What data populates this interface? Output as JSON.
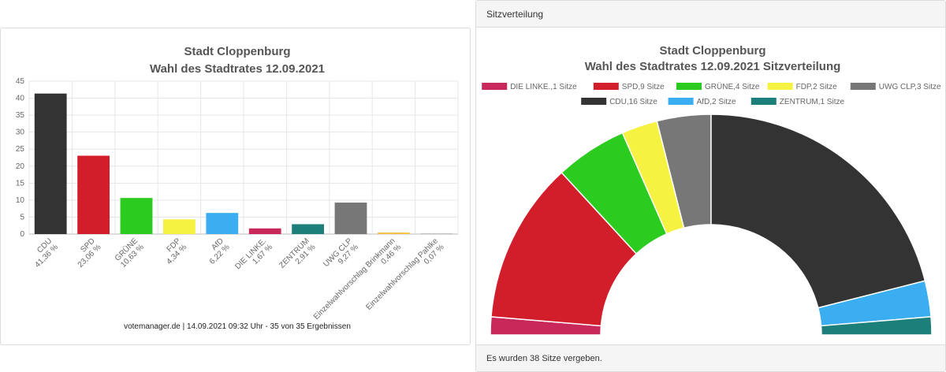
{
  "bar_chart": {
    "title_line1": "Stadt Cloppenburg",
    "title_line2": "Wahl des Stadtrates 12.09.2021",
    "footnote": "votemanager.de | 14.09.2021 09:32 Uhr - 35 von 35 Ergebnissen"
  },
  "seat_chart": {
    "header": "Sitzverteilung",
    "title_line1": "Stadt Cloppenburg",
    "title_line2": "Wahl des Stadtrates 12.09.2021 Sitzverteilung",
    "footer": "Es wurden 38 Sitze vergeben."
  },
  "chart_data": [
    {
      "type": "bar",
      "title": "Stadt Cloppenburg Wahl des Stadtrates 12.09.2021",
      "categories": [
        "CDU",
        "SPD",
        "GRÜNE",
        "FDP",
        "AfD",
        "DIE LINKE.",
        "ZENTRUM",
        "UWG CLP",
        "Einzelwahlvorschlag Brinkmann",
        "Einzelwahlvorschlag Pahlke"
      ],
      "values": [
        41.36,
        23.06,
        10.63,
        4.34,
        6.22,
        1.67,
        2.91,
        9.27,
        0.46,
        0.07
      ],
      "value_labels": [
        "41,36 %",
        "23,06 %",
        "10,63 %",
        "4,34 %",
        "6,22 %",
        "1,67 %",
        "2,91 %",
        "9,27 %",
        "0,46 %",
        "0,07 %"
      ],
      "colors": [
        "#333333",
        "#d21e2b",
        "#2bcc1f",
        "#f5f242",
        "#3aaef0",
        "#c8285a",
        "#1d7f7a",
        "#777777",
        "#f5c542",
        "#c0c0c0"
      ],
      "ylim": [
        0,
        45
      ],
      "yticks": [
        0,
        5,
        10,
        15,
        20,
        25,
        30,
        35,
        40,
        45
      ],
      "grid": true
    },
    {
      "type": "pie",
      "subtype": "parliament-semicircle",
      "title": "Stadt Cloppenburg Wahl des Stadtrates 12.09.2021 Sitzverteilung",
      "legend_position": "top",
      "series": [
        {
          "name": "DIE LINKE.",
          "seats": 1,
          "legend": "DIE LINKE.,1 Sitze",
          "color": "#c8285a"
        },
        {
          "name": "SPD",
          "seats": 9,
          "legend": "SPD,9 Sitze",
          "color": "#d21e2b"
        },
        {
          "name": "GRÜNE",
          "seats": 4,
          "legend": "GRÜNE,4 Sitze",
          "color": "#2bcc1f"
        },
        {
          "name": "FDP",
          "seats": 2,
          "legend": "FDP,2 Sitze",
          "color": "#f5f242"
        },
        {
          "name": "UWG CLP",
          "seats": 3,
          "legend": "UWG CLP,3 Sitze",
          "color": "#777777"
        },
        {
          "name": "CDU",
          "seats": 16,
          "legend": "CDU,16 Sitze",
          "color": "#333333"
        },
        {
          "name": "AfD",
          "seats": 2,
          "legend": "AfD,2 Sitze",
          "color": "#3aaef0"
        },
        {
          "name": "ZENTRUM",
          "seats": 1,
          "legend": "ZENTRUM,1 Sitze",
          "color": "#1d7f7a"
        }
      ],
      "total_seats": 38
    }
  ]
}
